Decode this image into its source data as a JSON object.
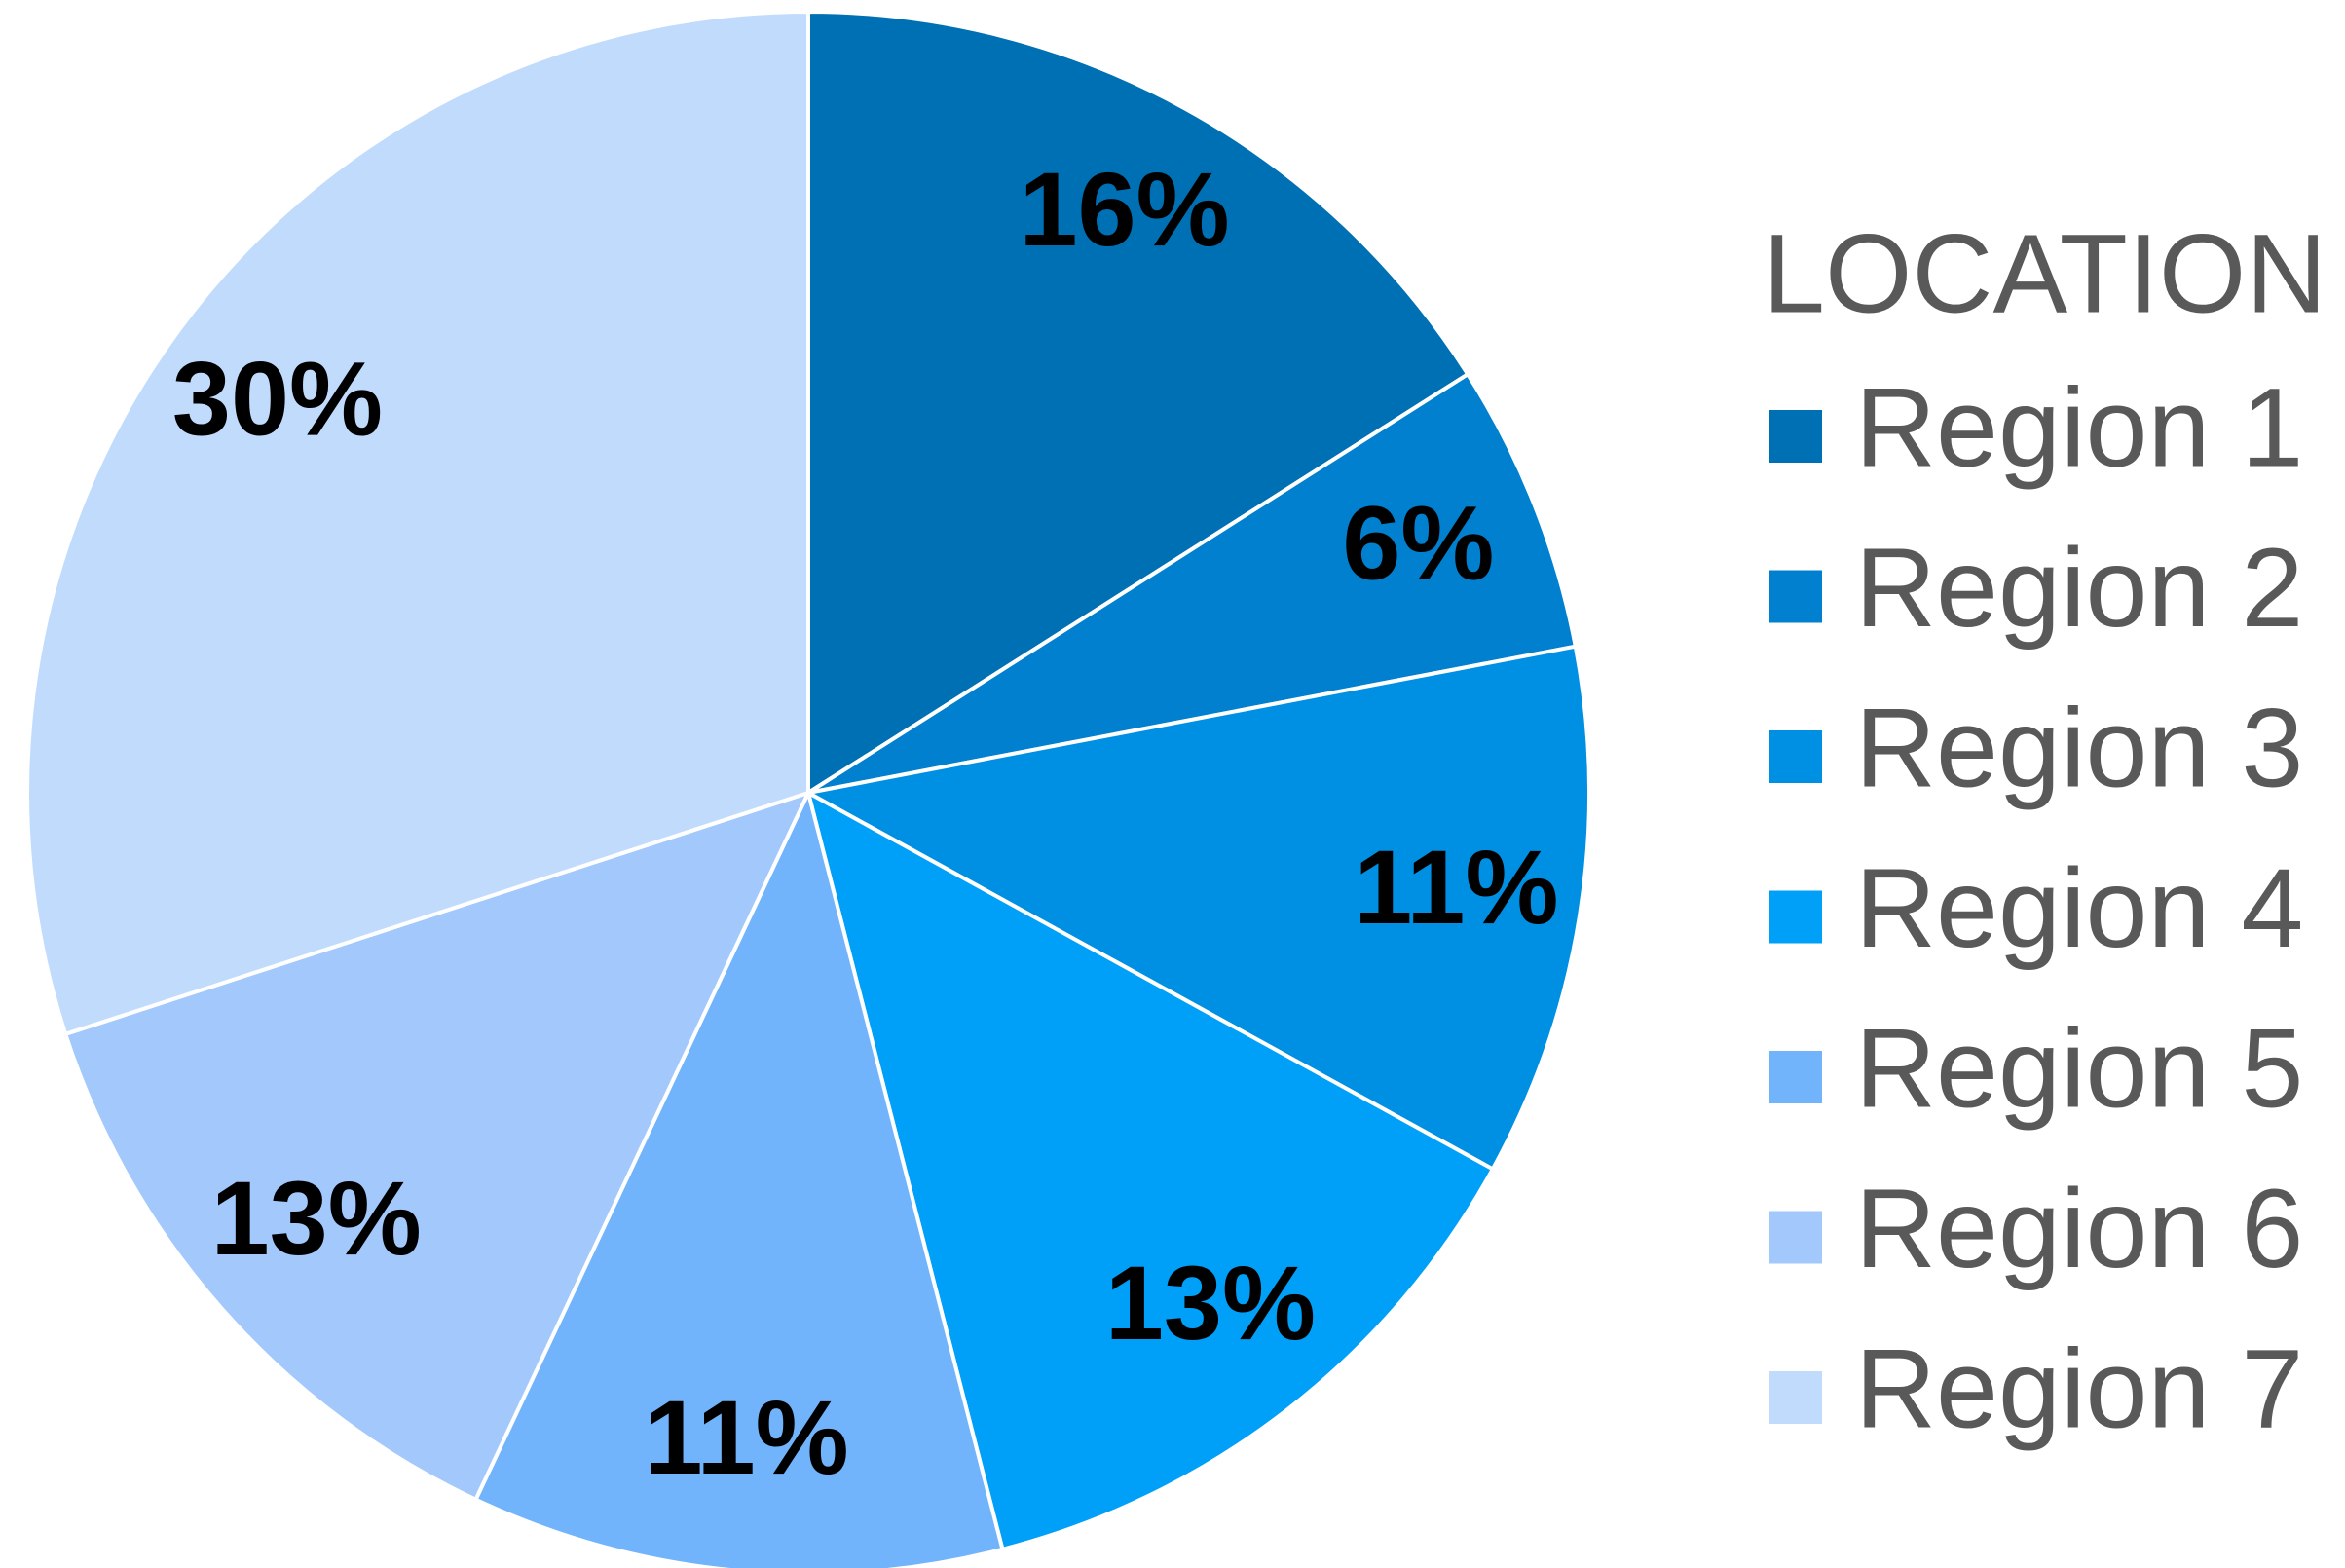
{
  "chart_data": {
    "type": "pie",
    "legend_title": "LOCATION",
    "legend": "right",
    "categories": [
      "Region 1",
      "Region 2",
      "Region 3",
      "Region 4",
      "Region 5",
      "Region 6",
      "Region 7"
    ],
    "values": [
      16,
      6,
      11,
      13,
      11,
      13,
      30
    ],
    "value_labels": [
      "16%",
      "6%",
      "11%",
      "13%",
      "11%",
      "13%",
      "30%"
    ],
    "colors": [
      "#0070b4",
      "#0080cf",
      "#0090e3",
      "#00a0f8",
      "#72b4fc",
      "#a2c8fc",
      "#c1dbfd"
    ]
  }
}
